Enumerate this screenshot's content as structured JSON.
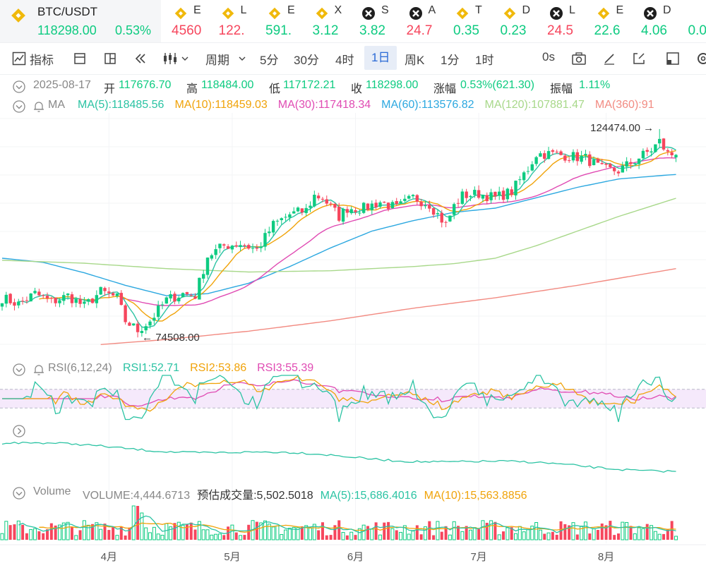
{
  "ticker": {
    "active": {
      "name": "BTC/USDT",
      "price": "118298.00",
      "change": "0.53%"
    },
    "items": [
      {
        "label": "E",
        "value": "4560",
        "color": "#f6465d",
        "icon": "binance-diamond-icon"
      },
      {
        "label": "L",
        "value": "122.",
        "color": "#f6465d",
        "icon": "binance-diamond-icon"
      },
      {
        "label": "E",
        "value": "591.",
        "color": "#0ecb81",
        "icon": "binance-diamond-icon"
      },
      {
        "label": "X",
        "value": "3.12",
        "color": "#0ecb81",
        "icon": "binance-diamond-icon"
      },
      {
        "label": "S",
        "value": "3.82",
        "color": "#0ecb81",
        "icon": "cross-circle-icon"
      },
      {
        "label": "A",
        "value": "24.7",
        "color": "#f6465d",
        "icon": "cross-circle-icon"
      },
      {
        "label": "T",
        "value": "0.35",
        "color": "#0ecb81",
        "icon": "binance-diamond-icon"
      },
      {
        "label": "D",
        "value": "0.23",
        "color": "#0ecb81",
        "icon": "binance-diamond-icon"
      },
      {
        "label": "L",
        "value": "24.5",
        "color": "#f6465d",
        "icon": "cross-circle-icon"
      },
      {
        "label": "E",
        "value": "22.6",
        "color": "#0ecb81",
        "icon": "binance-diamond-icon"
      },
      {
        "label": "D",
        "value": "4.06",
        "color": "#0ecb81",
        "icon": "cross-circle-icon"
      },
      {
        "label": "",
        "value": "0.0",
        "color": "#0ecb81",
        "icon": ""
      }
    ]
  },
  "toolbar": {
    "indicator": "指标",
    "period": "周期",
    "intervals": [
      "5分",
      "30分",
      "4时",
      "1日",
      "周K",
      "1分",
      "1时"
    ],
    "selected_interval": "1日",
    "countdown": "0s"
  },
  "info": {
    "date": "2025-08-17",
    "open_label": "开",
    "open": "117676.70",
    "high_label": "高",
    "high": "118484.00",
    "low_label": "低",
    "low": "117172.21",
    "close_label": "收",
    "close": "118298.00",
    "change_label": "涨幅",
    "change": "0.53%(621.30)",
    "amp_label": "振幅",
    "amp": "1.11%"
  },
  "ma_legend": {
    "title": "MA",
    "items": [
      {
        "text": "MA(5):118485.56",
        "color": "#2bc3a3"
      },
      {
        "text": "MA(10):118459.03",
        "color": "#f0a30a"
      },
      {
        "text": "MA(30):117418.34",
        "color": "#e04bb3"
      },
      {
        "text": "MA(60):113576.82",
        "color": "#2ca8e0"
      },
      {
        "text": "MA(120):107881.47",
        "color": "#a8d88a"
      },
      {
        "text": "MA(360):91",
        "color": "#f28b82"
      }
    ]
  },
  "rsi_legend": {
    "title": "RSI(6,12,24)",
    "items": [
      {
        "text": "RSI1:52.71",
        "color": "#2bc3a3"
      },
      {
        "text": "RSI2:53.86",
        "color": "#f0a30a"
      },
      {
        "text": "RSI3:55.39",
        "color": "#e04bb3"
      }
    ]
  },
  "vol_legend": {
    "title": "Volume",
    "items": [
      {
        "text": "VOLUME:4,444.6713",
        "color": "#888888"
      },
      {
        "text": "预估成交量:5,502.5018",
        "color": "#333333"
      },
      {
        "text": "MA(5):15,686.4016",
        "color": "#2bc3a3"
      },
      {
        "text": "MA(10):15,563.8856",
        "color": "#f0a30a"
      }
    ]
  },
  "chart_data": {
    "type": "candlestick",
    "candle_count": 165,
    "x_axis": {
      "labels": [
        "4月",
        "5月",
        "6月",
        "7月",
        "8月"
      ],
      "label_index": [
        26,
        56,
        86,
        116,
        147
      ]
    },
    "y_range": [
      72000,
      127000
    ],
    "high_marker": {
      "text": "124474.00",
      "value": 124474,
      "index": 160
    },
    "low_marker": {
      "text": "74508.00",
      "value": 74508,
      "index": 33
    },
    "anchors": {
      "index": [
        0,
        4,
        8,
        12,
        16,
        20,
        24,
        28,
        30,
        33,
        36,
        40,
        44,
        47,
        50,
        54,
        58,
        62,
        66,
        70,
        74,
        76,
        78,
        82,
        84,
        88,
        92,
        96,
        100,
        104,
        108,
        110,
        112,
        116,
        120,
        124,
        128,
        130,
        134,
        138,
        142,
        146,
        150,
        154,
        158,
        160,
        162,
        164
      ],
      "close": [
        84000,
        82500,
        85000,
        83000,
        84500,
        82000,
        85500,
        84000,
        78500,
        76200,
        78500,
        83500,
        85000,
        84600,
        94000,
        96500,
        97000,
        95500,
        101500,
        104000,
        105000,
        108500,
        108000,
        103500,
        105500,
        105500,
        107000,
        105500,
        108000,
        106500,
        101500,
        106000,
        108500,
        109000,
        108000,
        109500,
        115000,
        118500,
        118500,
        118000,
        117500,
        114800,
        114500,
        117000,
        119500,
        121500,
        118500,
        118298
      ]
    },
    "ma": [
      {
        "period": 60,
        "color": "#2ca8e0",
        "index": [
          0,
          10,
          20,
          30,
          40,
          50,
          60,
          70,
          80,
          90,
          100,
          110,
          120,
          130,
          140,
          150,
          160,
          164
        ],
        "value": [
          93500,
          92500,
          90000,
          87000,
          84500,
          85000,
          87500,
          91500,
          96000,
          100000,
          102500,
          104500,
          105500,
          108000,
          110500,
          112500,
          113300,
          113576.82
        ]
      },
      {
        "period": 120,
        "color": "#a8d88a",
        "index": [
          0,
          20,
          40,
          60,
          80,
          100,
          110,
          120,
          130,
          140,
          150,
          164
        ],
        "value": [
          93000,
          92300,
          91000,
          90200,
          90500,
          91500,
          92200,
          93500,
          96500,
          100000,
          103500,
          107881.47
        ]
      },
      {
        "period": 360,
        "color": "#f28b82",
        "index": [
          24,
          40,
          60,
          80,
          100,
          120,
          140,
          164
        ],
        "value": [
          72800,
          74000,
          76000,
          78500,
          81500,
          84000,
          87000,
          91000
        ]
      }
    ],
    "rsi": {
      "series": [
        {
          "name": "RSI1",
          "color": "#2bc3a3",
          "value": 52.71
        },
        {
          "name": "RSI2",
          "color": "#f0a30a",
          "value": 53.86
        },
        {
          "name": "RSI3",
          "color": "#e04bb3",
          "value": 55.39
        }
      ],
      "levels": [
        70,
        30
      ]
    },
    "volume": {
      "volume": 4444.6713,
      "estimate": 5502.5018,
      "ma": [
        {
          "period": 5,
          "color": "#2bc3a3",
          "value": 15686.4016
        },
        {
          "period": 10,
          "color": "#f0a30a",
          "value": 15563.8856
        }
      ]
    },
    "colors": {
      "up": "#0ecb81",
      "down": "#f6465d"
    }
  }
}
